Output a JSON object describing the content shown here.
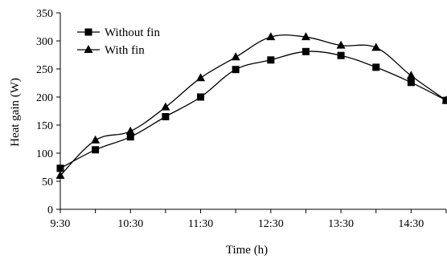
{
  "chart_data": {
    "type": "line",
    "x": [
      "9:30",
      "10:00",
      "10:30",
      "11:00",
      "11:30",
      "12:00",
      "12:30",
      "13:00",
      "13:30",
      "14:00",
      "14:30",
      "15:00"
    ],
    "xticks": [
      "9:30",
      "10:30",
      "11:30",
      "12:30",
      "13:30",
      "14:30"
    ],
    "series": [
      {
        "name": "Without fin",
        "marker": "square",
        "values": [
          73,
          106,
          129,
          165,
          200,
          249,
          266,
          281,
          274,
          253,
          226,
          194
        ]
      },
      {
        "name": "With fin",
        "marker": "triangle",
        "values": [
          60,
          123,
          139,
          182,
          234,
          271,
          307,
          307,
          292,
          288,
          238,
          194
        ]
      }
    ],
    "xlabel": "Time (h)",
    "ylabel": "Heat gain (W)",
    "ylim": [
      0,
      350
    ],
    "yticks": [
      0,
      50,
      100,
      150,
      200,
      250,
      300,
      350
    ],
    "grid": false,
    "legend_position": "top-left",
    "colors": {
      "line": "#000000",
      "marker": "#000000"
    }
  }
}
